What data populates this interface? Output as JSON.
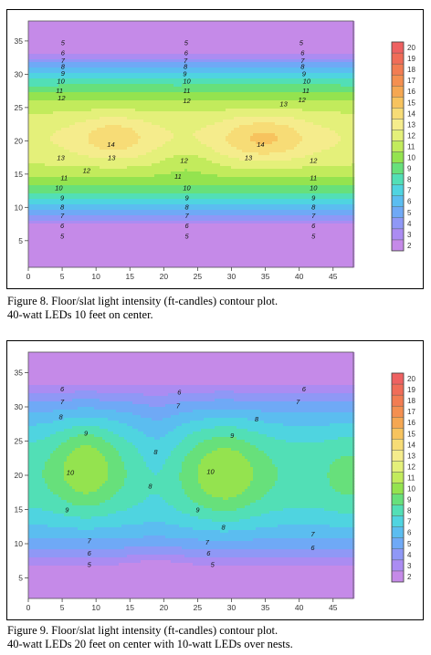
{
  "chart_data": [
    {
      "type": "heatmap",
      "subtype": "filled-contour",
      "x": [
        0,
        5,
        10,
        15,
        20,
        25,
        30,
        35,
        40,
        45
      ],
      "y": [
        5,
        10,
        15,
        20,
        25,
        30,
        35
      ],
      "xlim": [
        0,
        48
      ],
      "ylim": [
        1,
        38
      ],
      "grid": false,
      "legend": "right",
      "legend_levels": [
        2,
        3,
        4,
        5,
        6,
        7,
        8,
        9,
        10,
        11,
        12,
        13,
        14,
        15,
        16,
        17,
        18,
        19,
        20
      ],
      "contour_labels": [
        {
          "x": 5,
          "y": 5.7,
          "text": "5"
        },
        {
          "x": 5,
          "y": 7.3,
          "text": "6"
        },
        {
          "x": 5,
          "y": 8.8,
          "text": "7"
        },
        {
          "x": 5,
          "y": 10.1,
          "text": "8"
        },
        {
          "x": 5,
          "y": 11.5,
          "text": "9"
        },
        {
          "x": 4.5,
          "y": 13.0,
          "text": "10"
        },
        {
          "x": 5.3,
          "y": 14.5,
          "text": "11"
        },
        {
          "x": 8.6,
          "y": 15.6,
          "text": "12"
        },
        {
          "x": 4.8,
          "y": 17.5,
          "text": "13"
        },
        {
          "x": 12.2,
          "y": 19.5,
          "text": "14"
        },
        {
          "x": 4.9,
          "y": 26.5,
          "text": "12"
        },
        {
          "x": 4.6,
          "y": 27.6,
          "text": "11"
        },
        {
          "x": 4.8,
          "y": 29.0,
          "text": "10"
        },
        {
          "x": 5.1,
          "y": 30.2,
          "text": "9"
        },
        {
          "x": 5.1,
          "y": 31.2,
          "text": "8"
        },
        {
          "x": 5.1,
          "y": 32.1,
          "text": "7"
        },
        {
          "x": 5.1,
          "y": 33.3,
          "text": "6"
        },
        {
          "x": 5.1,
          "y": 34.8,
          "text": "5"
        },
        {
          "x": 23.4,
          "y": 5.7,
          "text": "5"
        },
        {
          "x": 23.4,
          "y": 7.3,
          "text": "6"
        },
        {
          "x": 23.4,
          "y": 8.8,
          "text": "7"
        },
        {
          "x": 23.4,
          "y": 10.1,
          "text": "8"
        },
        {
          "x": 23.4,
          "y": 11.5,
          "text": "9"
        },
        {
          "x": 23.4,
          "y": 13.0,
          "text": "10"
        },
        {
          "x": 22.1,
          "y": 14.7,
          "text": "11"
        },
        {
          "x": 23.0,
          "y": 17.1,
          "text": "12"
        },
        {
          "x": 32.5,
          "y": 17.5,
          "text": "13"
        },
        {
          "x": 34.3,
          "y": 19.5,
          "text": "14"
        },
        {
          "x": 23.4,
          "y": 26.1,
          "text": "12"
        },
        {
          "x": 23.4,
          "y": 27.6,
          "text": "11"
        },
        {
          "x": 23.4,
          "y": 29.0,
          "text": "10"
        },
        {
          "x": 23.1,
          "y": 30.1,
          "text": "9"
        },
        {
          "x": 23.2,
          "y": 31.2,
          "text": "8"
        },
        {
          "x": 23.2,
          "y": 32.1,
          "text": "7"
        },
        {
          "x": 23.3,
          "y": 33.3,
          "text": "6"
        },
        {
          "x": 23.3,
          "y": 34.8,
          "text": "5"
        },
        {
          "x": 42.1,
          "y": 5.7,
          "text": "5"
        },
        {
          "x": 42.1,
          "y": 7.3,
          "text": "6"
        },
        {
          "x": 42.1,
          "y": 8.8,
          "text": "7"
        },
        {
          "x": 42.1,
          "y": 10.1,
          "text": "8"
        },
        {
          "x": 42.1,
          "y": 11.5,
          "text": "9"
        },
        {
          "x": 42.1,
          "y": 13.0,
          "text": "10"
        },
        {
          "x": 42.1,
          "y": 14.5,
          "text": "11"
        },
        {
          "x": 42.1,
          "y": 17.1,
          "text": "12"
        },
        {
          "x": 12.3,
          "y": 17.5,
          "text": "13"
        },
        {
          "x": 37.7,
          "y": 25.6,
          "text": "13"
        },
        {
          "x": 40.4,
          "y": 26.2,
          "text": "12"
        },
        {
          "x": 41.0,
          "y": 27.6,
          "text": "11"
        },
        {
          "x": 41.1,
          "y": 29.0,
          "text": "10"
        },
        {
          "x": 40.7,
          "y": 30.1,
          "text": "9"
        },
        {
          "x": 40.5,
          "y": 31.2,
          "text": "8"
        },
        {
          "x": 40.5,
          "y": 32.1,
          "text": "7"
        },
        {
          "x": 40.5,
          "y": 33.3,
          "text": "6"
        },
        {
          "x": 40.3,
          "y": 34.8,
          "text": "5"
        }
      ]
    },
    {
      "type": "heatmap",
      "subtype": "filled-contour",
      "x": [
        0,
        5,
        10,
        15,
        20,
        25,
        30,
        35,
        40,
        45
      ],
      "y": [
        5,
        10,
        15,
        20,
        25,
        30,
        35
      ],
      "xlim": [
        0,
        48
      ],
      "ylim": [
        2,
        38
      ],
      "grid": false,
      "legend": "right",
      "legend_levels": [
        2,
        3,
        4,
        5,
        6,
        7,
        8,
        9,
        10,
        11,
        12,
        13,
        14,
        15,
        16,
        17,
        18,
        19,
        20
      ],
      "contour_labels": [
        {
          "x": 5,
          "y": 32.7,
          "text": "6"
        },
        {
          "x": 5,
          "y": 30.8,
          "text": "7"
        },
        {
          "x": 4.8,
          "y": 28.6,
          "text": "8"
        },
        {
          "x": 8.5,
          "y": 26.2,
          "text": "9"
        },
        {
          "x": 6.2,
          "y": 20.5,
          "text": "10"
        },
        {
          "x": 5.7,
          "y": 15.0,
          "text": "9"
        },
        {
          "x": 9.0,
          "y": 10.5,
          "text": "7"
        },
        {
          "x": 9.0,
          "y": 8.7,
          "text": "6"
        },
        {
          "x": 9.0,
          "y": 7.0,
          "text": "5"
        },
        {
          "x": 22.3,
          "y": 32.2,
          "text": "6"
        },
        {
          "x": 22.1,
          "y": 30.2,
          "text": "7"
        },
        {
          "x": 33.7,
          "y": 28.3,
          "text": "8"
        },
        {
          "x": 30.1,
          "y": 25.9,
          "text": "9"
        },
        {
          "x": 26.9,
          "y": 20.6,
          "text": "10"
        },
        {
          "x": 18.8,
          "y": 23.5,
          "text": "8"
        },
        {
          "x": 18.0,
          "y": 18.5,
          "text": "8"
        },
        {
          "x": 25.0,
          "y": 15.0,
          "text": "9"
        },
        {
          "x": 28.8,
          "y": 12.5,
          "text": "8"
        },
        {
          "x": 26.4,
          "y": 10.3,
          "text": "7"
        },
        {
          "x": 26.6,
          "y": 8.7,
          "text": "6"
        },
        {
          "x": 27.2,
          "y": 7.0,
          "text": "5"
        },
        {
          "x": 40.7,
          "y": 32.7,
          "text": "6"
        },
        {
          "x": 39.8,
          "y": 30.8,
          "text": "7"
        },
        {
          "x": 42.0,
          "y": 11.5,
          "text": "7"
        },
        {
          "x": 42.0,
          "y": 9.5,
          "text": "6"
        }
      ]
    }
  ],
  "figures": [
    {
      "caption_line1": "Figure 8.  Floor/slat light intensity (ft-candles) contour plot.",
      "caption_line2": "40-watt LEDs 10 feet on center."
    },
    {
      "caption_line1": "Figure 9.  Floor/slat light intensity (ft-candles) contour plot.",
      "caption_line2": "40-watt LEDs 20 feet on center with 10-watt LEDs over nests."
    }
  ],
  "colors": {
    "level_2": "#c58ae8",
    "level_3": "#ab8cf2",
    "level_4": "#8f98f6",
    "level_5": "#6fa9f6",
    "level_6": "#5bbdf0",
    "level_7": "#4fd4e0",
    "level_8": "#52dfb6",
    "level_9": "#67e07b",
    "level_10": "#94e34f",
    "level_11": "#c2eb5c",
    "level_12": "#e4f07a",
    "level_13": "#f5ec8c",
    "level_14": "#f7dc76",
    "level_15": "#f7c35e",
    "level_16": "#f5a752",
    "level_17": "#f48f50",
    "level_18": "#f27c52",
    "level_19": "#f06c58",
    "level_20": "#ee6161"
  }
}
